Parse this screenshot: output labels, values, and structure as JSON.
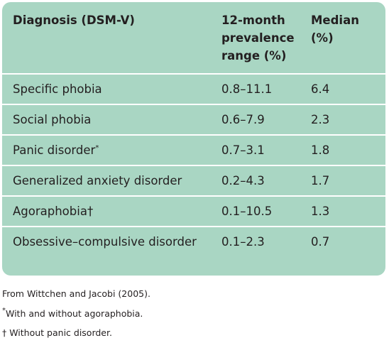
{
  "table": {
    "header": [
      "Diagnosis (DSM-V)",
      "12-month prevalence range (%)",
      "Median (%)"
    ],
    "rows": [
      {
        "diagnosis": "Specific phobia",
        "range": "0.8–11.1",
        "median": "6.4"
      },
      {
        "diagnosis": "Social phobia",
        "range": "0.6–7.9",
        "median": "2.3"
      },
      {
        "diagnosis": "Panic disorder",
        "mark": "*",
        "range": "0.7–3.1",
        "median": "1.8"
      },
      {
        "diagnosis": "Generalized anxiety disorder",
        "range": "0.2–4.3",
        "median": "1.7"
      },
      {
        "diagnosis": "Agoraphobia†",
        "range": "0.1–10.5",
        "median": "1.3"
      },
      {
        "diagnosis": "Obsessive–compulsive disorder",
        "range": "0.1–2.3",
        "median": "0.7"
      }
    ]
  },
  "footnotes": [
    {
      "text": "From Wittchen and Jacobi (2005)."
    },
    {
      "mark": "*",
      "text": "With and without agoraphobia."
    },
    {
      "text": "† Without panic disorder."
    }
  ]
}
